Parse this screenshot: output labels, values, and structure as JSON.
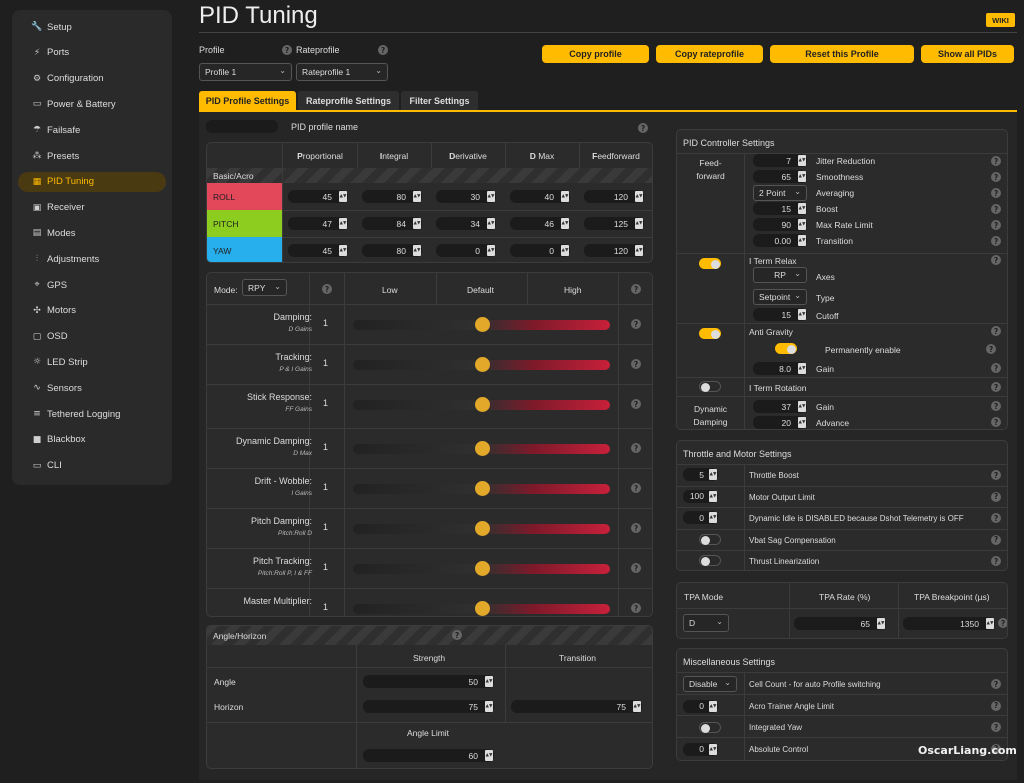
{
  "sidebar": {
    "items": [
      {
        "label": "Setup",
        "icon": "wrench-icon",
        "glyph": "🔧"
      },
      {
        "label": "Ports",
        "icon": "plug-icon",
        "glyph": "⚡"
      },
      {
        "label": "Configuration",
        "icon": "gear-icon",
        "glyph": "⚙"
      },
      {
        "label": "Power & Battery",
        "icon": "battery-icon",
        "glyph": "▭"
      },
      {
        "label": "Failsafe",
        "icon": "parachute-icon",
        "glyph": "☂"
      },
      {
        "label": "Presets",
        "icon": "presets-icon",
        "glyph": "⁂"
      },
      {
        "label": "PID Tuning",
        "icon": "pid-icon",
        "glyph": "▦"
      },
      {
        "label": "Receiver",
        "icon": "receiver-icon",
        "glyph": "▣"
      },
      {
        "label": "Modes",
        "icon": "modes-icon",
        "glyph": "▤"
      },
      {
        "label": "Adjustments",
        "icon": "sliders-icon",
        "glyph": "⫶"
      },
      {
        "label": "GPS",
        "icon": "gps-icon",
        "glyph": "⌖"
      },
      {
        "label": "Motors",
        "icon": "motor-icon",
        "glyph": "✣"
      },
      {
        "label": "OSD",
        "icon": "osd-icon",
        "glyph": "▢"
      },
      {
        "label": "LED Strip",
        "icon": "led-icon",
        "glyph": "☼"
      },
      {
        "label": "Sensors",
        "icon": "sensors-icon",
        "glyph": "∿"
      },
      {
        "label": "Tethered Logging",
        "icon": "tether-icon",
        "glyph": "≡"
      },
      {
        "label": "Blackbox",
        "icon": "blackbox-icon",
        "glyph": "■"
      },
      {
        "label": "CLI",
        "icon": "terminal-icon",
        "glyph": "▭"
      }
    ]
  },
  "header": {
    "title": "PID Tuning",
    "wiki": "WIKI"
  },
  "profile": {
    "label": "Profile",
    "value": "Profile 1"
  },
  "rateprofile": {
    "label": "Rateprofile",
    "value": "Rateprofile 1"
  },
  "buttons": {
    "copy_profile": "Copy profile",
    "copy_rateprofile": "Copy rateprofile",
    "reset_profile": "Reset this Profile",
    "show_all": "Show all PIDs"
  },
  "tabs": [
    "PID Profile Settings",
    "Rateprofile Settings",
    "Filter Settings"
  ],
  "pid_profile_name": {
    "label": "PID profile name",
    "value": ""
  },
  "pid_table": {
    "section": "Basic/Acro",
    "headers": [
      {
        "b": "P",
        "r": "roportional"
      },
      {
        "b": "I",
        "r": "ntegral"
      },
      {
        "b": "D",
        "r": "erivative"
      },
      {
        "b": "D",
        "r": " Max"
      },
      {
        "b": "F",
        "r": "eedforward"
      }
    ],
    "rows": [
      {
        "axis": "ROLL",
        "color": "#e2475a",
        "values": [
          45,
          80,
          30,
          40,
          120
        ]
      },
      {
        "axis": "PITCH",
        "color": "#8ccd1f",
        "values": [
          47,
          84,
          34,
          46,
          125
        ]
      },
      {
        "axis": "YAW",
        "color": "#27aeec",
        "values": [
          45,
          80,
          0,
          0,
          120
        ]
      }
    ]
  },
  "sliders": {
    "mode_label": "Mode:",
    "mode_value": "RPY",
    "cols": {
      "low": "Low",
      "default": "Default",
      "high": "High"
    },
    "rows": [
      {
        "label": "Damping:",
        "sub": "D Gains",
        "value": "1",
        "pos": 0.5
      },
      {
        "label": "Tracking:",
        "sub": "P & I Gains",
        "value": "1",
        "pos": 0.5
      },
      {
        "label": "Stick Response:",
        "sub": "FF Gains",
        "value": "1",
        "pos": 0.5
      },
      {
        "label": "Dynamic Damping:",
        "sub": "D Max",
        "value": "1",
        "pos": 0.5
      },
      {
        "label": "Drift - Wobble:",
        "sub": "I Gains",
        "value": "1",
        "pos": 0.5
      },
      {
        "label": "Pitch Damping:",
        "sub": "Pitch:Roll D",
        "value": "1",
        "pos": 0.5
      },
      {
        "label": "Pitch Tracking:",
        "sub": "Pitch:Roll P, I & FF",
        "value": "1",
        "pos": 0.5
      },
      {
        "label": "Master Multiplier:",
        "sub": "",
        "value": "1",
        "pos": 0.5
      }
    ]
  },
  "angle_horizon": {
    "title": "Angle/Horizon",
    "strength": "Strength",
    "transition": "Transition",
    "angle_label": "Angle",
    "angle_strength": "50",
    "horizon_label": "Horizon",
    "horizon_strength": "75",
    "horizon_transition": "75",
    "angle_limit_label": "Angle Limit",
    "angle_limit": "60"
  },
  "controller": {
    "title": "PID Controller Settings",
    "feedforward_label": "Feed-\nforward",
    "ff": [
      {
        "value": "7",
        "label": "Jitter Reduction"
      },
      {
        "value": "65",
        "label": "Smoothness"
      },
      {
        "value": "2 Point",
        "label": "Averaging",
        "select": true
      },
      {
        "value": "15",
        "label": "Boost"
      },
      {
        "value": "90",
        "label": "Max Rate Limit"
      },
      {
        "value": "0.00",
        "label": "Transition"
      }
    ],
    "iterm_relax": {
      "label": "I Term Relax",
      "on": true,
      "axes_value": "RP",
      "axes_label": "Axes",
      "type_value": "Setpoint",
      "type_label": "Type",
      "cutoff_value": "15",
      "cutoff_label": "Cutoff"
    },
    "anti_gravity": {
      "label": "Anti Gravity",
      "on": true,
      "perm_label": "Permanently enable",
      "perm_on": true,
      "gain_value": "8.0",
      "gain_label": "Gain"
    },
    "iterm_rotation": {
      "label": "I Term Rotation",
      "on": false
    },
    "dynamic_damping": {
      "label": "Dynamic\nDamping",
      "gain_value": "37",
      "gain_label": "Gain",
      "advance_value": "20",
      "advance_label": "Advance"
    }
  },
  "throttle": {
    "title": "Throttle and Motor Settings",
    "rows": [
      {
        "type": "num",
        "value": "5",
        "label": "Throttle Boost"
      },
      {
        "type": "num",
        "value": "100",
        "label": "Motor Output Limit"
      },
      {
        "type": "num",
        "value": "0",
        "label": "Dynamic Idle is DISABLED because Dshot Telemetry is OFF"
      },
      {
        "type": "toggle",
        "on": false,
        "label": "Vbat Sag Compensation"
      },
      {
        "type": "toggle",
        "on": false,
        "label": "Thrust Linearization"
      }
    ]
  },
  "tpa": {
    "mode_label": "TPA Mode",
    "rate_label": "TPA Rate (%)",
    "bp_label": "TPA Breakpoint (µs)",
    "mode_value": "D",
    "rate_value": "65",
    "bp_value": "1350"
  },
  "misc": {
    "title": "Miscellaneous Settings",
    "rows": [
      {
        "type": "select",
        "value": "Disable",
        "label": "Cell Count - for auto Profile switching"
      },
      {
        "type": "num",
        "value": "0",
        "label": "Acro Trainer Angle Limit"
      },
      {
        "type": "toggle",
        "on": false,
        "label": "Integrated Yaw"
      },
      {
        "type": "num",
        "value": "0",
        "label": "Absolute Control"
      }
    ]
  },
  "watermark": "OscarLiang.com",
  "colors": {
    "accent": "#ffbb00",
    "roll": "#e2475a",
    "pitch": "#8ccd1f",
    "yaw": "#27aeec",
    "slider_thumb": "#e1a82a"
  }
}
